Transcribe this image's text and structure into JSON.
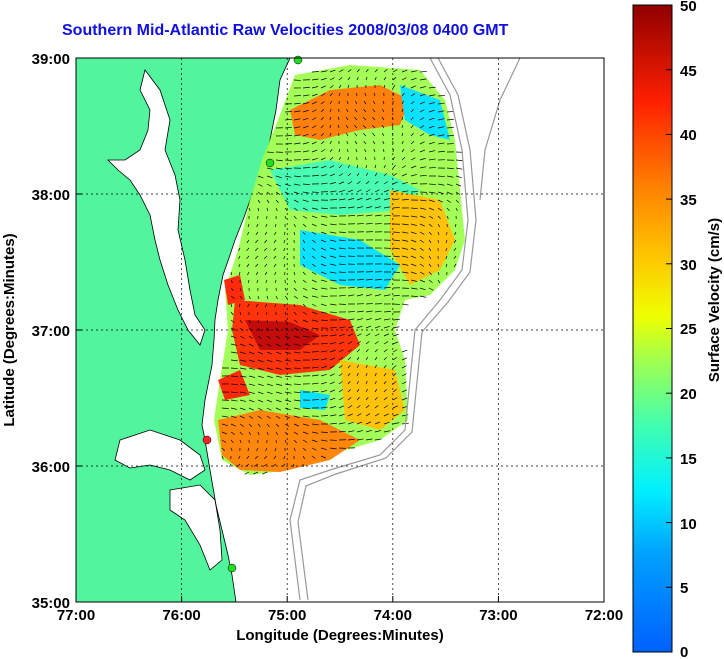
{
  "title": "Southern Mid-Atlantic Raw Velocities 2008/03/08 0400 GMT",
  "x_axis": {
    "label": "Longitude (Degrees:Minutes)",
    "ticks": [
      "77:00",
      "76:00",
      "75:00",
      "74:00",
      "73:00",
      "72:00"
    ]
  },
  "y_axis": {
    "label": "Latitude (Degrees:Minutes)",
    "ticks": [
      "39:00",
      "38:00",
      "37:00",
      "36:00",
      "35:00"
    ]
  },
  "colorbar": {
    "label": "Surface Velocity (cm/s)",
    "ticks": [
      "50",
      "45",
      "40",
      "35",
      "30",
      "25",
      "20",
      "15",
      "10",
      "5",
      "0"
    ],
    "range": [
      0,
      50
    ],
    "colormap": "jet"
  },
  "colors": {
    "land": "#52f59e",
    "ocean": "#ffffff",
    "grid": "#000000",
    "bathymetry": "#999999",
    "title": "#1010e0"
  },
  "chart_data": {
    "type": "map",
    "region": "Southern Mid-Atlantic Bight",
    "lon_range": [
      -77,
      -72
    ],
    "lat_range": [
      35,
      39
    ],
    "grid": true,
    "field": "surface current vectors colored by speed",
    "markers": [
      {
        "name": "station",
        "lon": -75.1,
        "lat": 38.99,
        "color": "#22dd22"
      },
      {
        "name": "station",
        "lon": -75.15,
        "lat": 38.22,
        "color": "#22dd22"
      },
      {
        "name": "station",
        "lon": -75.7,
        "lat": 36.18,
        "color": "#ff2222"
      },
      {
        "name": "station",
        "lon": -75.5,
        "lat": 35.28,
        "color": "#22dd22"
      }
    ]
  }
}
